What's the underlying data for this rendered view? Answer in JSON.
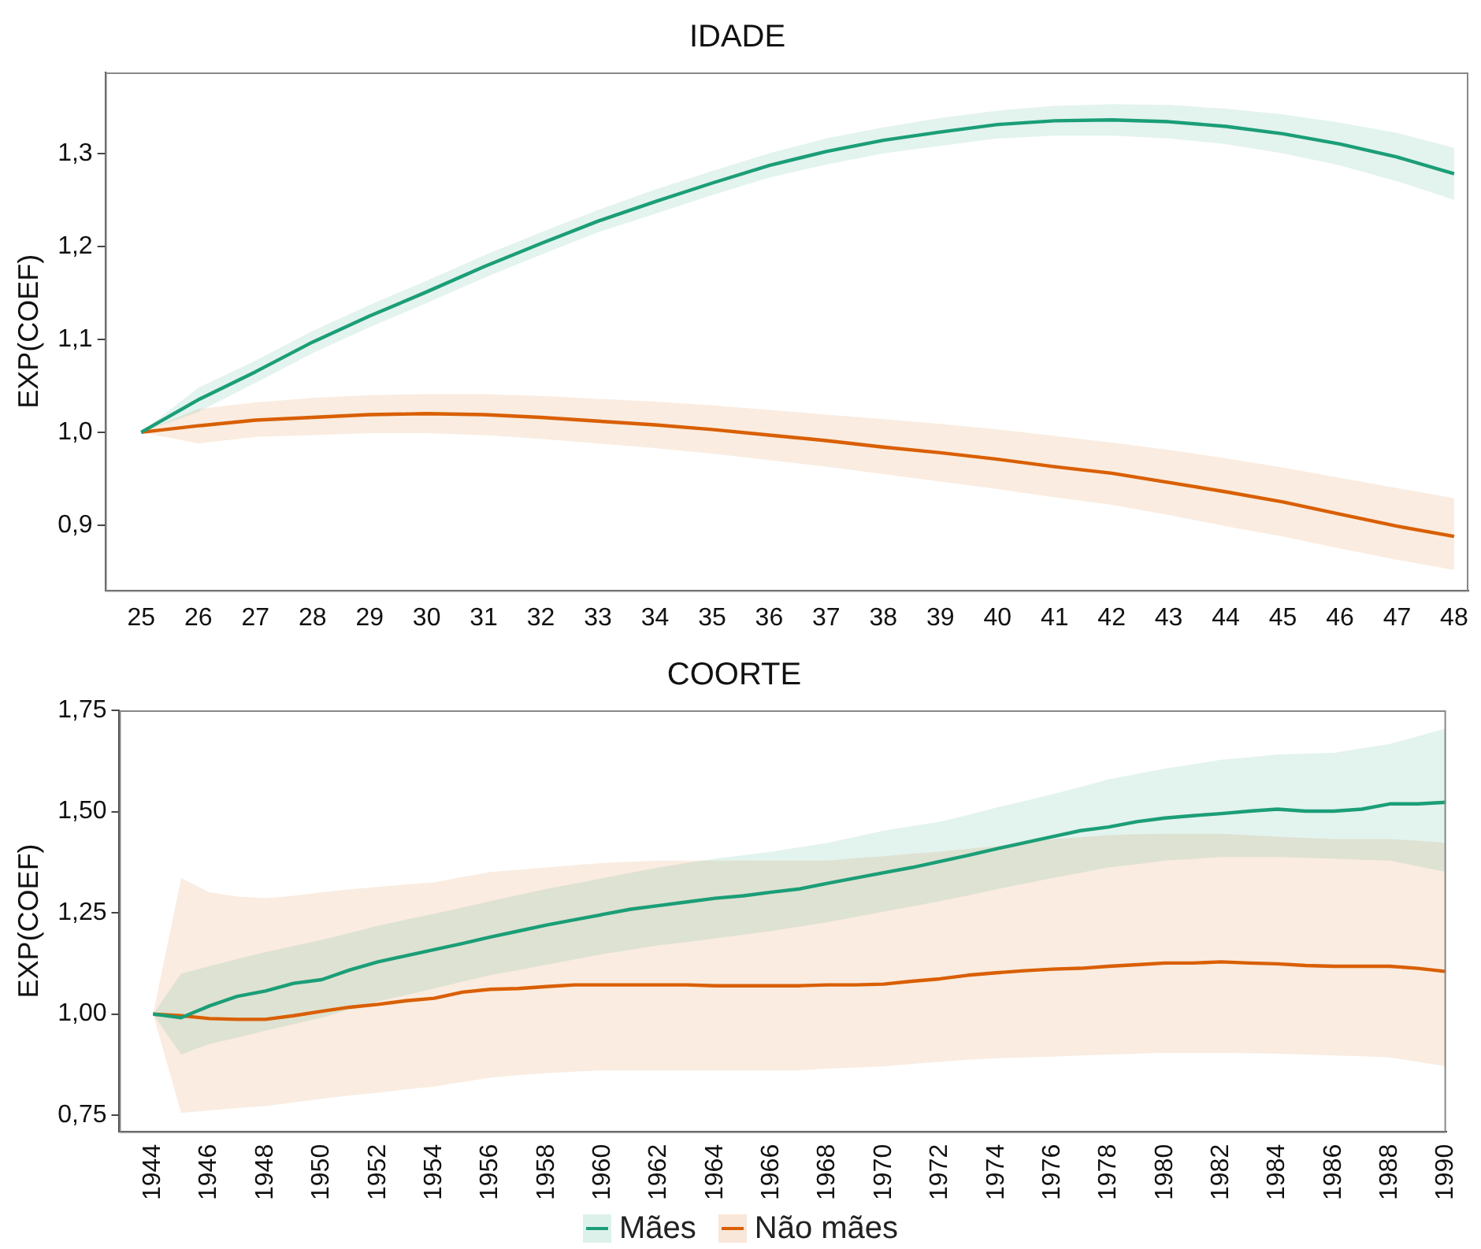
{
  "chart_data": [
    {
      "type": "line",
      "title": "IDADE",
      "ylabel": "EXP(COEF)",
      "x": [
        25,
        26,
        27,
        28,
        29,
        30,
        31,
        32,
        33,
        34,
        35,
        36,
        37,
        38,
        39,
        40,
        41,
        42,
        43,
        44,
        45,
        46,
        47,
        48
      ],
      "xlim": [
        24.37,
        48.25
      ],
      "xticks": [
        25,
        26,
        27,
        28,
        29,
        30,
        31,
        32,
        33,
        34,
        35,
        36,
        37,
        38,
        39,
        40,
        41,
        42,
        43,
        44,
        45,
        46,
        47,
        48
      ],
      "ylim": [
        0.83,
        1.387
      ],
      "yticks": [
        {
          "value": 0.9,
          "label": "0,9"
        },
        {
          "value": 1.0,
          "label": "1,0"
        },
        {
          "value": 1.1,
          "label": "1,1"
        },
        {
          "value": 1.2,
          "label": "1,2"
        },
        {
          "value": 1.3,
          "label": "1,3"
        }
      ],
      "marker": "none",
      "grid": false,
      "series": [
        {
          "color": "#1b9e77",
          "values": [
            1.0,
            1.035,
            1.065,
            1.097,
            1.125,
            1.151,
            1.178,
            1.203,
            1.227,
            1.248,
            1.268,
            1.287,
            1.302,
            1.314,
            1.323,
            1.331,
            1.335,
            1.336,
            1.334,
            1.329,
            1.321,
            1.31,
            1.296,
            1.278
          ],
          "upper": [
            1.0,
            1.048,
            1.077,
            1.109,
            1.137,
            1.163,
            1.19,
            1.215,
            1.239,
            1.261,
            1.281,
            1.3,
            1.316,
            1.328,
            1.338,
            1.346,
            1.351,
            1.353,
            1.352,
            1.348,
            1.342,
            1.333,
            1.322,
            1.306
          ],
          "lower": [
            1.0,
            1.022,
            1.053,
            1.085,
            1.113,
            1.139,
            1.166,
            1.191,
            1.215,
            1.235,
            1.255,
            1.274,
            1.288,
            1.3,
            1.308,
            1.316,
            1.319,
            1.319,
            1.316,
            1.31,
            1.3,
            1.287,
            1.27,
            1.25
          ]
        },
        {
          "color": "#d95f02",
          "values": [
            1.0,
            1.007,
            1.013,
            1.016,
            1.019,
            1.02,
            1.019,
            1.016,
            1.012,
            1.008,
            1.003,
            0.997,
            0.991,
            0.984,
            0.978,
            0.971,
            0.963,
            0.956,
            0.946,
            0.936,
            0.925,
            0.912,
            0.899,
            0.888
          ],
          "upper": [
            1.0,
            1.025,
            1.032,
            1.037,
            1.04,
            1.041,
            1.041,
            1.039,
            1.036,
            1.033,
            1.029,
            1.024,
            1.019,
            1.014,
            1.009,
            1.003,
            0.996,
            0.989,
            0.981,
            0.972,
            0.962,
            0.951,
            0.94,
            0.929
          ],
          "lower": [
            1.0,
            0.988,
            0.995,
            0.997,
            0.999,
            0.999,
            0.997,
            0.993,
            0.988,
            0.983,
            0.977,
            0.97,
            0.963,
            0.955,
            0.947,
            0.939,
            0.93,
            0.922,
            0.911,
            0.899,
            0.888,
            0.875,
            0.863,
            0.852
          ]
        }
      ]
    },
    {
      "type": "line",
      "title": "COORTE",
      "ylabel": "EXP(COEF)",
      "x": [
        1944,
        1945,
        1946,
        1947,
        1948,
        1949,
        1950,
        1951,
        1952,
        1953,
        1954,
        1955,
        1956,
        1957,
        1958,
        1959,
        1960,
        1961,
        1962,
        1963,
        1964,
        1965,
        1966,
        1967,
        1968,
        1969,
        1970,
        1971,
        1972,
        1973,
        1974,
        1975,
        1976,
        1977,
        1978,
        1979,
        1980,
        1981,
        1982,
        1983,
        1984,
        1985,
        1986,
        1987,
        1988,
        1989,
        1990
      ],
      "xlim": [
        1942.8,
        1990
      ],
      "xticks": [
        1944,
        1946,
        1948,
        1950,
        1952,
        1954,
        1956,
        1958,
        1960,
        1962,
        1964,
        1966,
        1968,
        1970,
        1972,
        1974,
        1976,
        1978,
        1980,
        1982,
        1984,
        1986,
        1988,
        1990
      ],
      "ylim": [
        0.71,
        1.75
      ],
      "yticks": [
        {
          "value": 0.75,
          "label": "0,75"
        },
        {
          "value": 1.0,
          "label": "1,00"
        },
        {
          "value": 1.25,
          "label": "1,25"
        },
        {
          "value": 1.5,
          "label": "1,50"
        },
        {
          "value": 1.75,
          "label": "1,75"
        }
      ],
      "marker": "none",
      "grid": false,
      "legend": "bottom",
      "series": [
        {
          "name": "Mães",
          "color": "#1b9e77",
          "values": [
            1.0,
            0.991,
            1.02,
            1.044,
            1.057,
            1.076,
            1.085,
            1.109,
            1.129,
            1.144,
            1.159,
            1.174,
            1.19,
            1.205,
            1.22,
            1.233,
            1.246,
            1.259,
            1.268,
            1.277,
            1.286,
            1.292,
            1.301,
            1.309,
            1.323,
            1.336,
            1.349,
            1.362,
            1.377,
            1.392,
            1.408,
            1.423,
            1.438,
            1.453,
            1.462,
            1.475,
            1.484,
            1.49,
            1.495,
            1.501,
            1.506,
            1.501,
            1.501,
            1.506,
            1.519,
            1.519,
            1.523
          ],
          "upper": [
            1.0,
            1.1,
            1.118,
            1.136,
            1.153,
            1.168,
            1.183,
            1.2,
            1.218,
            1.233,
            1.248,
            1.263,
            1.279,
            1.294,
            1.309,
            1.322,
            1.336,
            1.349,
            1.362,
            1.373,
            1.384,
            1.392,
            1.401,
            1.412,
            1.423,
            1.438,
            1.453,
            1.464,
            1.475,
            1.492,
            1.51,
            1.526,
            1.543,
            1.561,
            1.58,
            1.593,
            1.606,
            1.617,
            1.628,
            1.634,
            1.641,
            1.643,
            1.645,
            1.656,
            1.667,
            1.686,
            1.706
          ],
          "lower": [
            1.0,
            0.9,
            0.926,
            0.942,
            0.959,
            0.975,
            0.991,
            1.011,
            1.031,
            1.047,
            1.063,
            1.08,
            1.096,
            1.109,
            1.122,
            1.135,
            1.148,
            1.159,
            1.17,
            1.178,
            1.187,
            1.196,
            1.205,
            1.216,
            1.227,
            1.24,
            1.253,
            1.266,
            1.279,
            1.293,
            1.308,
            1.322,
            1.336,
            1.349,
            1.362,
            1.37,
            1.379,
            1.383,
            1.388,
            1.388,
            1.388,
            1.386,
            1.384,
            1.381,
            1.379,
            1.365,
            1.351
          ]
        },
        {
          "name": "Não mães",
          "color": "#d95f02",
          "values": [
            1.0,
            0.996,
            0.989,
            0.987,
            0.987,
            0.996,
            1.007,
            1.017,
            1.024,
            1.033,
            1.039,
            1.054,
            1.061,
            1.063,
            1.068,
            1.072,
            1.072,
            1.072,
            1.072,
            1.072,
            1.07,
            1.07,
            1.07,
            1.07,
            1.072,
            1.072,
            1.074,
            1.081,
            1.087,
            1.096,
            1.102,
            1.107,
            1.111,
            1.113,
            1.118,
            1.122,
            1.126,
            1.126,
            1.129,
            1.126,
            1.124,
            1.12,
            1.118,
            1.118,
            1.118,
            1.113,
            1.105
          ],
          "upper": [
            1.0,
            1.336,
            1.301,
            1.29,
            1.286,
            1.292,
            1.301,
            1.308,
            1.314,
            1.32,
            1.325,
            1.338,
            1.351,
            1.356,
            1.362,
            1.368,
            1.373,
            1.376,
            1.379,
            1.379,
            1.379,
            1.379,
            1.379,
            1.379,
            1.379,
            1.385,
            1.39,
            1.396,
            1.401,
            1.408,
            1.414,
            1.423,
            1.432,
            1.437,
            1.442,
            1.444,
            1.445,
            1.445,
            1.445,
            1.442,
            1.438,
            1.435,
            1.432,
            1.432,
            1.432,
            1.428,
            1.423
          ],
          "lower": [
            1.0,
            0.756,
            0.762,
            0.768,
            0.773,
            0.782,
            0.791,
            0.799,
            0.806,
            0.814,
            0.821,
            0.832,
            0.843,
            0.849,
            0.854,
            0.858,
            0.861,
            0.861,
            0.861,
            0.861,
            0.861,
            0.861,
            0.861,
            0.861,
            0.865,
            0.868,
            0.871,
            0.877,
            0.882,
            0.887,
            0.891,
            0.893,
            0.895,
            0.898,
            0.9,
            0.902,
            0.904,
            0.904,
            0.904,
            0.903,
            0.902,
            0.9,
            0.898,
            0.896,
            0.893,
            0.882,
            0.871
          ]
        }
      ]
    }
  ]
}
